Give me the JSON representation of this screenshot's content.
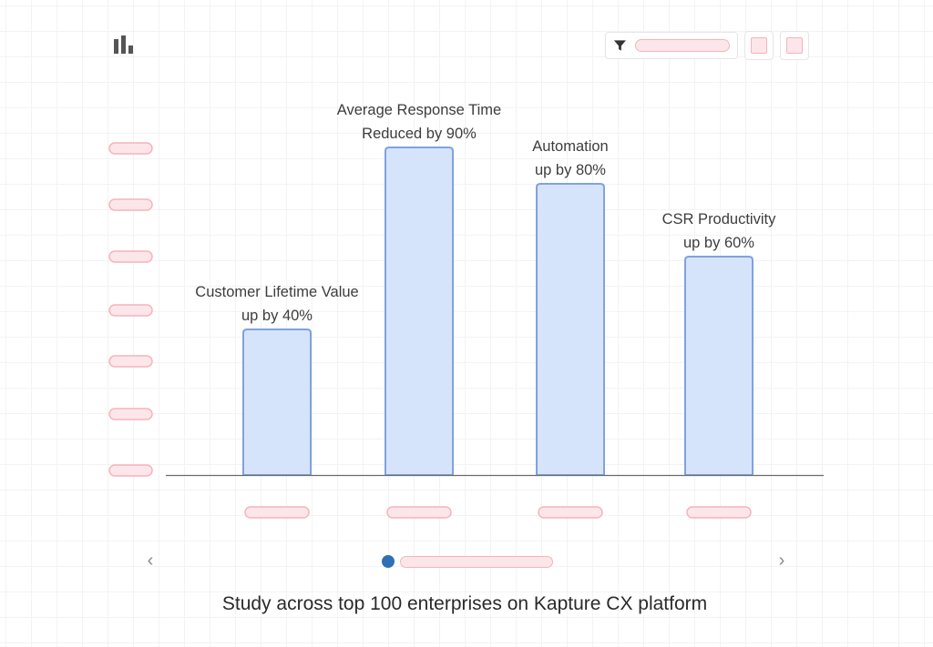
{
  "icons": {
    "chart_icon": "bar-chart-icon",
    "filter_icon": "filter-icon",
    "prev_icon": "chevron-left-icon",
    "next_icon": "chevron-right-icon"
  },
  "pager": {
    "prev_glyph": "‹",
    "next_glyph": "›"
  },
  "caption": "Study across top 100 enterprises on Kapture CX platform",
  "colors": {
    "bar_fill": "#d6e4fb",
    "bar_stroke": "#7ea3de",
    "placeholder_fill": "#fde6ea",
    "placeholder_stroke": "#f4b4bd",
    "axis": "#6b6b6b",
    "label_text": "#3d3d3d",
    "pager_active": "#2f6fb3"
  },
  "chart_data": {
    "type": "bar",
    "title": "",
    "xlabel": "",
    "ylabel": "",
    "ylim": [
      0,
      100
    ],
    "grid": false,
    "categories": [
      "Customer Lifetime Value",
      "Average Response Time",
      "Automation",
      "CSR Productivity"
    ],
    "values": [
      40,
      90,
      80,
      60
    ],
    "annotations": [
      [
        "Customer Lifetime Value",
        "up by 40%"
      ],
      [
        "Average Response Time",
        "Reduced by 90%"
      ],
      [
        "Automation",
        "up by 80%"
      ],
      [
        "CSR Productivity",
        "up by 60%"
      ]
    ]
  }
}
